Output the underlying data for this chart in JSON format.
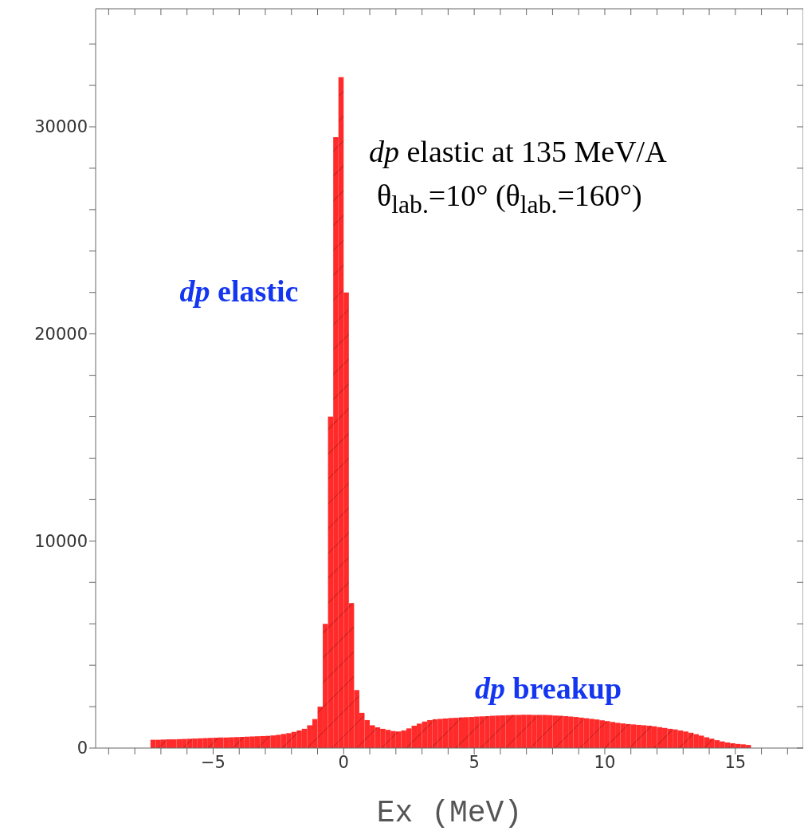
{
  "chart_data": {
    "type": "histogram",
    "title": "dp elastic at 135 MeV/A",
    "subtitle": "θ$_{lab.}$=10° (θ$_{lab.}$=160°)",
    "xlabel": "Ex (MeV)",
    "annotations": [
      "dp elastic",
      "dp breakup"
    ],
    "color": "#ff2a2a",
    "bins": [
      -7.4,
      -7.2,
      -7.0,
      -6.8,
      -6.6,
      -6.4,
      -6.2,
      -6.0,
      -5.8,
      -5.6,
      -5.4,
      -5.2,
      -5.0,
      -4.8,
      -4.6,
      -4.4,
      -4.2,
      -4.0,
      -3.8,
      -3.6,
      -3.4,
      -3.2,
      -3.0,
      -2.8,
      -2.6,
      -2.4,
      -2.2,
      -2.0,
      -1.8,
      -1.6,
      -1.4,
      -1.2,
      -1.0,
      -0.8,
      -0.6,
      -0.4,
      -0.2,
      0,
      0.2,
      0.4,
      0.6,
      0.8,
      1.0,
      1.2,
      1.4,
      1.6,
      1.8,
      2.0,
      2.2,
      2.4,
      2.6,
      2.8,
      3.0,
      3.2,
      3.4,
      3.6,
      3.8,
      4.0,
      4.2,
      4.4,
      4.6,
      4.8,
      5.0,
      5.2,
      5.4,
      5.6,
      5.8,
      6.0,
      6.2,
      6.4,
      6.6,
      6.8,
      7.0,
      7.2,
      7.4,
      7.6,
      7.8,
      8.0,
      8.2,
      8.4,
      8.6,
      8.8,
      9.0,
      9.2,
      9.4,
      9.6,
      9.8,
      10.0,
      10.2,
      10.4,
      10.6,
      10.8,
      11.0,
      11.2,
      11.4,
      11.6,
      11.8,
      12.0,
      12.2,
      12.4,
      12.6,
      12.8,
      13.0,
      13.2,
      13.4,
      13.6,
      13.8,
      14.0,
      14.2,
      14.4,
      14.6,
      14.8,
      15.0,
      15.2,
      15.4,
      15.6
    ],
    "values": [
      400,
      400,
      410,
      420,
      420,
      430,
      440,
      450,
      460,
      470,
      480,
      490,
      500,
      510,
      510,
      520,
      530,
      540,
      550,
      560,
      570,
      580,
      590,
      610,
      640,
      680,
      720,
      780,
      850,
      930,
      1100,
      1400,
      2000,
      6000,
      16000,
      29500,
      32400,
      22000,
      7000,
      2800,
      1700,
      1350,
      1100,
      1000,
      930,
      880,
      820,
      800,
      850,
      950,
      1080,
      1180,
      1280,
      1350,
      1390,
      1410,
      1430,
      1450,
      1460,
      1480,
      1490,
      1500,
      1520,
      1530,
      1540,
      1560,
      1570,
      1580,
      1590,
      1600,
      1600,
      1610,
      1610,
      1600,
      1600,
      1600,
      1590,
      1570,
      1560,
      1540,
      1520,
      1500,
      1470,
      1440,
      1410,
      1380,
      1340,
      1300,
      1260,
      1220,
      1190,
      1160,
      1140,
      1120,
      1100,
      1080,
      1050,
      1010,
      970,
      930,
      900,
      850,
      800,
      740,
      670,
      600,
      520,
      450,
      380,
      320,
      270,
      230,
      200,
      180,
      150
    ],
    "xlim": [
      -9.5,
      17.6
    ],
    "xticks": [
      {
        "value": -9,
        "label": null
      },
      {
        "value": -8,
        "label": null
      },
      {
        "value": -7,
        "label": null
      },
      {
        "value": -6,
        "label": null
      },
      {
        "value": -5,
        "label": "−5"
      },
      {
        "value": -4,
        "label": null
      },
      {
        "value": -3,
        "label": null
      },
      {
        "value": -2,
        "label": null
      },
      {
        "value": -1,
        "label": null
      },
      0,
      {
        "value": 1,
        "label": null
      },
      {
        "value": 2,
        "label": null
      },
      {
        "value": 3,
        "label": null
      },
      {
        "value": 4,
        "label": null
      },
      5,
      {
        "value": 6,
        "label": null
      },
      {
        "value": 7,
        "label": null
      },
      {
        "value": 8,
        "label": null
      },
      {
        "value": 9,
        "label": null
      },
      10,
      {
        "value": 11,
        "label": null
      },
      {
        "value": 12,
        "label": null
      },
      {
        "value": 13,
        "label": null
      },
      {
        "value": 14,
        "label": null
      },
      15,
      {
        "value": 16,
        "label": null
      },
      {
        "value": 17,
        "label": null
      }
    ],
    "ylim": [
      0,
      35700
    ],
    "yticks": [
      0,
      {
        "value": 2000,
        "label": null
      },
      {
        "value": 4000,
        "label": null
      },
      {
        "value": 6000,
        "label": null
      },
      {
        "value": 8000,
        "label": null
      },
      10000,
      {
        "value": 12000,
        "label": null
      },
      {
        "value": 14000,
        "label": null
      },
      {
        "value": 16000,
        "label": null
      },
      {
        "value": 18000,
        "label": null
      },
      20000,
      {
        "value": 22000,
        "label": null
      },
      {
        "value": 24000,
        "label": null
      },
      {
        "value": 26000,
        "label": null
      },
      {
        "value": 28000,
        "label": null
      },
      30000,
      {
        "value": 32000,
        "label": null
      },
      {
        "value": 34000,
        "label": null
      }
    ]
  }
}
